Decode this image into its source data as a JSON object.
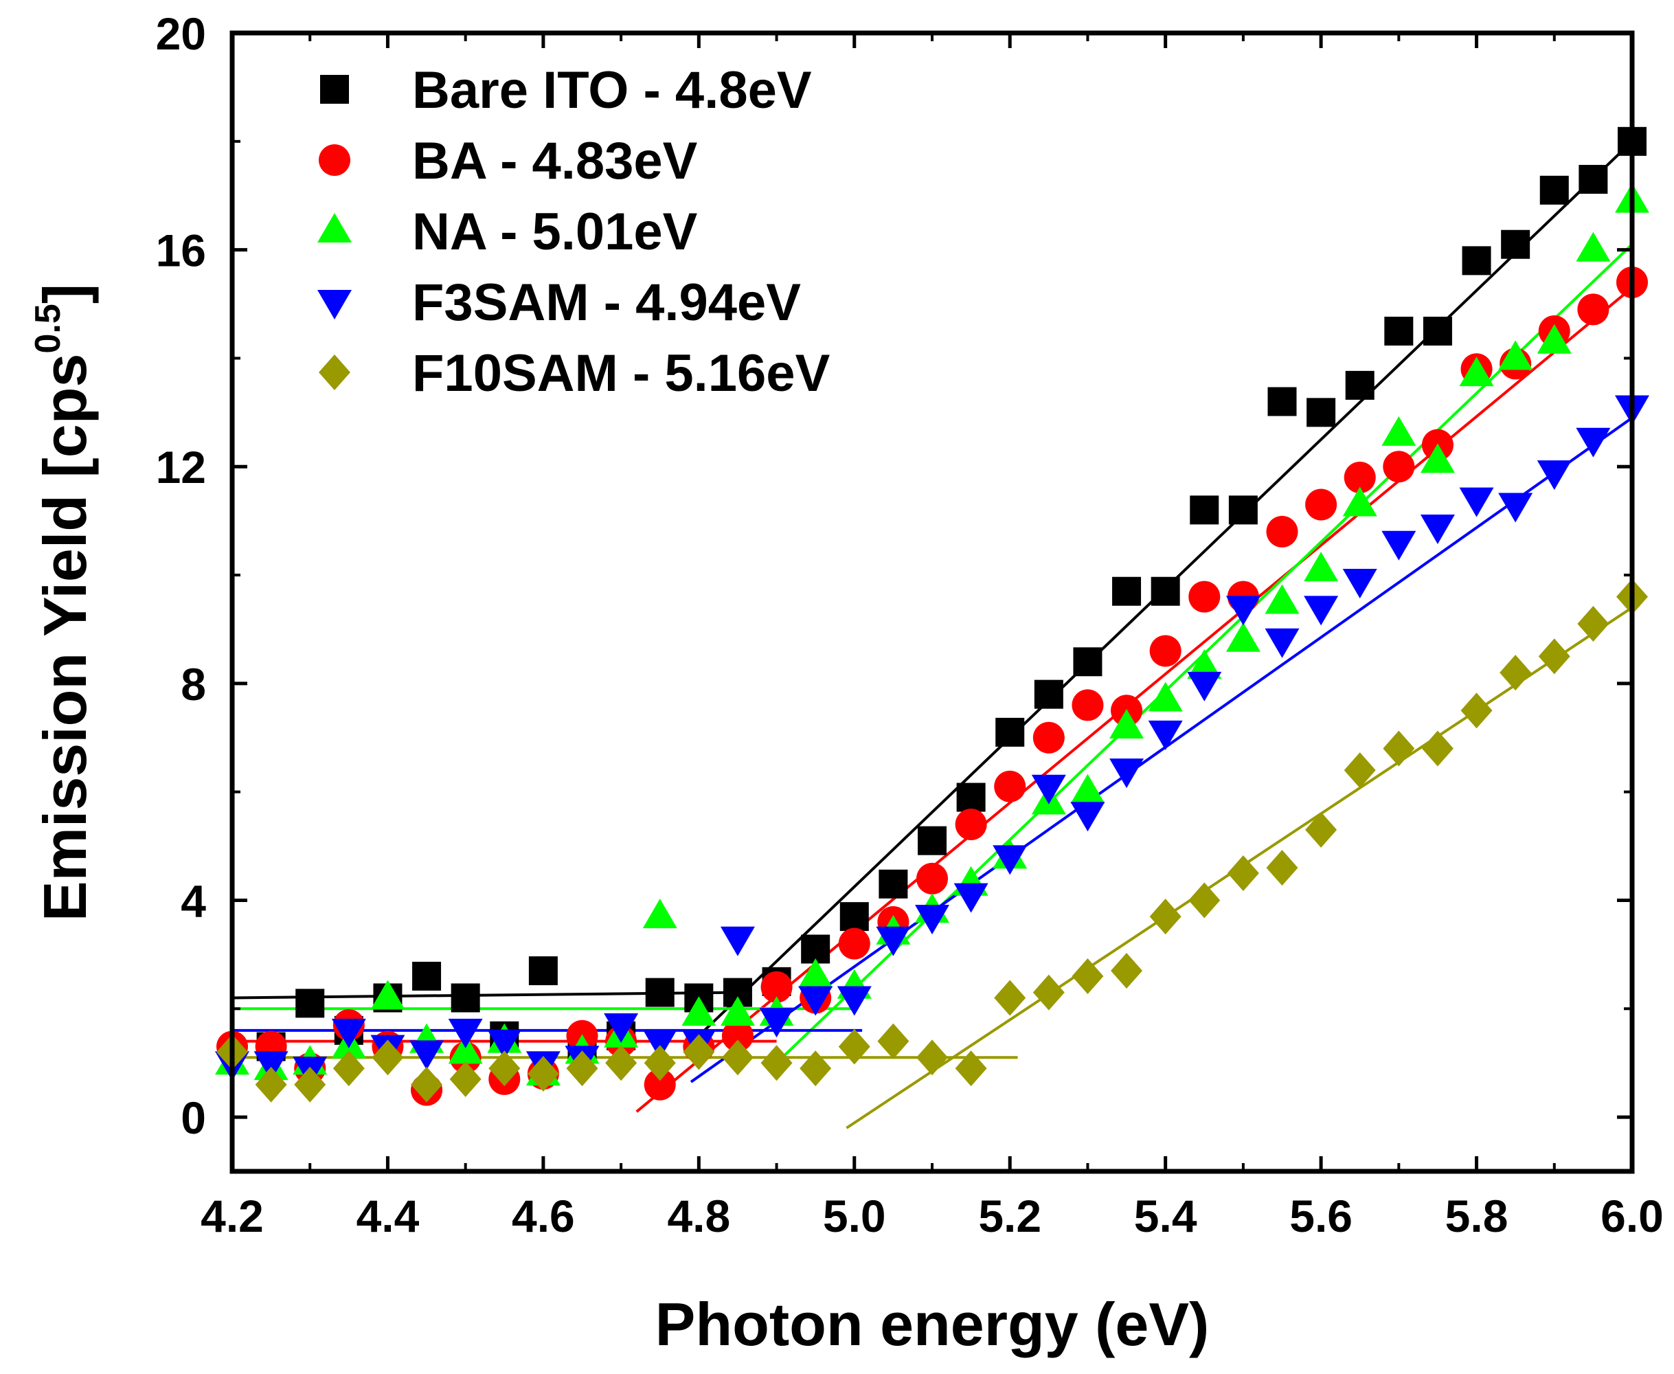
{
  "chart_data": {
    "type": "scatter",
    "title": "",
    "xlabel": "Photon energy (eV)",
    "ylabel_main": "Emission Yield [cps",
    "ylabel_sup": "0.5",
    "ylabel_close": "]",
    "xlim": [
      4.2,
      6.0
    ],
    "ylim": [
      -1.0,
      20.0
    ],
    "xticks": [
      4.2,
      4.4,
      4.6,
      4.8,
      5.0,
      5.2,
      5.4,
      5.6,
      5.8,
      6.0
    ],
    "xtick_labels": [
      "4.2",
      "4.4",
      "4.6",
      "4.8",
      "5.0",
      "5.2",
      "5.4",
      "5.6",
      "5.8",
      "6.0"
    ],
    "yticks": [
      0,
      4,
      8,
      12,
      16,
      20
    ],
    "ytick_labels": [
      "0",
      "4",
      "8",
      "12",
      "16",
      "20"
    ],
    "legend_position": "top-left",
    "series": [
      {
        "name": "Bare ITO - 4.8eV",
        "color": "#000000",
        "marker": "square",
        "points": [
          [
            4.25,
            1.3
          ],
          [
            4.3,
            2.1
          ],
          [
            4.35,
            1.6
          ],
          [
            4.4,
            2.2
          ],
          [
            4.45,
            2.6
          ],
          [
            4.5,
            2.2
          ],
          [
            4.55,
            1.5
          ],
          [
            4.6,
            2.7
          ],
          [
            4.65,
            1.3
          ],
          [
            4.7,
            1.5
          ],
          [
            4.75,
            2.3
          ],
          [
            4.8,
            2.2
          ],
          [
            4.85,
            2.3
          ],
          [
            4.9,
            2.5
          ],
          [
            4.95,
            3.1
          ],
          [
            5.0,
            3.7
          ],
          [
            5.05,
            4.3
          ],
          [
            5.1,
            5.1
          ],
          [
            5.15,
            5.9
          ],
          [
            5.2,
            7.1
          ],
          [
            5.25,
            7.8
          ],
          [
            5.3,
            8.4
          ],
          [
            5.35,
            9.7
          ],
          [
            5.4,
            9.7
          ],
          [
            5.45,
            11.2
          ],
          [
            5.5,
            11.2
          ],
          [
            5.55,
            13.2
          ],
          [
            5.6,
            13.0
          ],
          [
            5.65,
            13.5
          ],
          [
            5.7,
            14.5
          ],
          [
            5.75,
            14.5
          ],
          [
            5.8,
            15.8
          ],
          [
            5.85,
            16.1
          ],
          [
            5.9,
            17.1
          ],
          [
            5.95,
            17.3
          ],
          [
            6.0,
            18.0
          ]
        ],
        "fit_lines": [
          [
            [
              4.2,
              2.2
            ],
            [
              4.85,
              2.3
            ]
          ],
          [
            [
              4.8,
              1.5
            ],
            [
              6.0,
              18.0
            ]
          ]
        ]
      },
      {
        "name": "BA - 4.83eV",
        "color": "#ff0000",
        "marker": "circle",
        "points": [
          [
            4.2,
            1.3
          ],
          [
            4.25,
            1.3
          ],
          [
            4.3,
            0.9
          ],
          [
            4.35,
            1.7
          ],
          [
            4.4,
            1.3
          ],
          [
            4.45,
            0.5
          ],
          [
            4.5,
            1.1
          ],
          [
            4.55,
            0.7
          ],
          [
            4.6,
            0.8
          ],
          [
            4.65,
            1.5
          ],
          [
            4.7,
            1.4
          ],
          [
            4.75,
            0.6
          ],
          [
            4.8,
            1.3
          ],
          [
            4.85,
            1.5
          ],
          [
            4.9,
            2.4
          ],
          [
            4.95,
            2.2
          ],
          [
            5.0,
            3.2
          ],
          [
            5.05,
            3.6
          ],
          [
            5.1,
            4.4
          ],
          [
            5.15,
            5.4
          ],
          [
            5.2,
            6.1
          ],
          [
            5.25,
            7.0
          ],
          [
            5.3,
            7.6
          ],
          [
            5.35,
            7.5
          ],
          [
            5.4,
            8.6
          ],
          [
            5.45,
            9.6
          ],
          [
            5.5,
            9.6
          ],
          [
            5.55,
            10.8
          ],
          [
            5.6,
            11.3
          ],
          [
            5.65,
            11.8
          ],
          [
            5.7,
            12.0
          ],
          [
            5.75,
            12.4
          ],
          [
            5.8,
            13.8
          ],
          [
            5.85,
            13.9
          ],
          [
            5.9,
            14.5
          ],
          [
            5.95,
            14.9
          ],
          [
            6.0,
            15.4
          ]
        ],
        "fit_lines": [
          [
            [
              4.2,
              1.4
            ],
            [
              4.9,
              1.4
            ]
          ],
          [
            [
              4.72,
              0.1
            ],
            [
              6.0,
              15.3
            ]
          ]
        ]
      },
      {
        "name": "NA - 5.01eV",
        "color": "#00ff00",
        "marker": "triangle-up",
        "points": [
          [
            4.2,
            1.0
          ],
          [
            4.25,
            0.9
          ],
          [
            4.3,
            1.0
          ],
          [
            4.35,
            1.3
          ],
          [
            4.4,
            2.2
          ],
          [
            4.45,
            1.4
          ],
          [
            4.5,
            1.2
          ],
          [
            4.55,
            1.4
          ],
          [
            4.6,
            0.8
          ],
          [
            4.65,
            1.2
          ],
          [
            4.7,
            1.5
          ],
          [
            4.75,
            3.7
          ],
          [
            4.8,
            1.9
          ],
          [
            4.85,
            1.9
          ],
          [
            4.9,
            1.9
          ],
          [
            4.95,
            2.6
          ],
          [
            5.0,
            2.4
          ],
          [
            5.05,
            3.4
          ],
          [
            5.1,
            3.8
          ],
          [
            5.15,
            4.3
          ],
          [
            5.2,
            4.8
          ],
          [
            5.25,
            5.8
          ],
          [
            5.3,
            6.0
          ],
          [
            5.35,
            7.2
          ],
          [
            5.4,
            7.7
          ],
          [
            5.45,
            8.3
          ],
          [
            5.5,
            8.8
          ],
          [
            5.55,
            9.5
          ],
          [
            5.6,
            10.1
          ],
          [
            5.65,
            11.3
          ],
          [
            5.7,
            12.6
          ],
          [
            5.75,
            12.1
          ],
          [
            5.8,
            13.7
          ],
          [
            5.85,
            14.0
          ],
          [
            5.9,
            14.3
          ],
          [
            5.95,
            16.0
          ],
          [
            6.0,
            16.9
          ]
        ],
        "fit_lines": [
          [
            [
              4.2,
              2.0
            ],
            [
              5.0,
              2.0
            ]
          ],
          [
            [
              4.9,
              1.0
            ],
            [
              6.0,
              16.1
            ]
          ]
        ]
      },
      {
        "name": "F3SAM - 4.94eV",
        "color": "#0000ff",
        "marker": "triangle-down",
        "points": [
          [
            4.2,
            1.0
          ],
          [
            4.25,
            1.0
          ],
          [
            4.3,
            0.9
          ],
          [
            4.35,
            1.6
          ],
          [
            4.4,
            1.3
          ],
          [
            4.45,
            1.2
          ],
          [
            4.5,
            1.6
          ],
          [
            4.55,
            1.4
          ],
          [
            4.6,
            1.0
          ],
          [
            4.65,
            1.1
          ],
          [
            4.7,
            1.7
          ],
          [
            4.75,
            1.4
          ],
          [
            4.8,
            1.4
          ],
          [
            4.85,
            3.3
          ],
          [
            4.9,
            1.8
          ],
          [
            4.95,
            2.2
          ],
          [
            5.0,
            2.2
          ],
          [
            5.05,
            3.3
          ],
          [
            5.1,
            3.7
          ],
          [
            5.15,
            4.1
          ],
          [
            5.2,
            4.8
          ],
          [
            5.25,
            6.1
          ],
          [
            5.3,
            5.6
          ],
          [
            5.35,
            6.4
          ],
          [
            5.4,
            7.1
          ],
          [
            5.45,
            8.0
          ],
          [
            5.5,
            9.4
          ],
          [
            5.55,
            8.8
          ],
          [
            5.6,
            9.4
          ],
          [
            5.65,
            9.9
          ],
          [
            5.7,
            10.6
          ],
          [
            5.75,
            10.9
          ],
          [
            5.8,
            11.4
          ],
          [
            5.85,
            11.3
          ],
          [
            5.9,
            11.9
          ],
          [
            5.95,
            12.5
          ],
          [
            6.0,
            13.1
          ]
        ],
        "fit_lines": [
          [
            [
              4.2,
              1.6
            ],
            [
              5.01,
              1.6
            ]
          ],
          [
            [
              4.79,
              0.65
            ],
            [
              6.0,
              12.9
            ]
          ]
        ]
      },
      {
        "name": "F10SAM - 5.16eV",
        "color": "#999900",
        "marker": "diamond",
        "points": [
          [
            4.2,
            1.2
          ],
          [
            4.25,
            0.6
          ],
          [
            4.3,
            0.6
          ],
          [
            4.35,
            0.9
          ],
          [
            4.4,
            1.1
          ],
          [
            4.45,
            0.6
          ],
          [
            4.5,
            0.7
          ],
          [
            4.55,
            0.9
          ],
          [
            4.6,
            0.8
          ],
          [
            4.65,
            0.9
          ],
          [
            4.7,
            1.0
          ],
          [
            4.75,
            1.0
          ],
          [
            4.8,
            1.2
          ],
          [
            4.85,
            1.1
          ],
          [
            4.9,
            1.0
          ],
          [
            4.95,
            0.9
          ],
          [
            5.0,
            1.3
          ],
          [
            5.05,
            1.4
          ],
          [
            5.1,
            1.1
          ],
          [
            5.15,
            0.9
          ],
          [
            5.2,
            2.2
          ],
          [
            5.25,
            2.3
          ],
          [
            5.3,
            2.6
          ],
          [
            5.35,
            2.7
          ],
          [
            5.4,
            3.7
          ],
          [
            5.45,
            4.0
          ],
          [
            5.5,
            4.5
          ],
          [
            5.55,
            4.6
          ],
          [
            5.6,
            5.3
          ],
          [
            5.65,
            6.4
          ],
          [
            5.7,
            6.8
          ],
          [
            5.75,
            6.8
          ],
          [
            5.8,
            7.5
          ],
          [
            5.85,
            8.2
          ],
          [
            5.9,
            8.5
          ],
          [
            5.95,
            9.1
          ],
          [
            6.0,
            9.6
          ]
        ],
        "fit_lines": [
          [
            [
              4.2,
              1.1
            ],
            [
              5.21,
              1.1
            ]
          ],
          [
            [
              4.99,
              -0.2
            ],
            [
              6.0,
              9.4
            ]
          ]
        ]
      }
    ]
  }
}
